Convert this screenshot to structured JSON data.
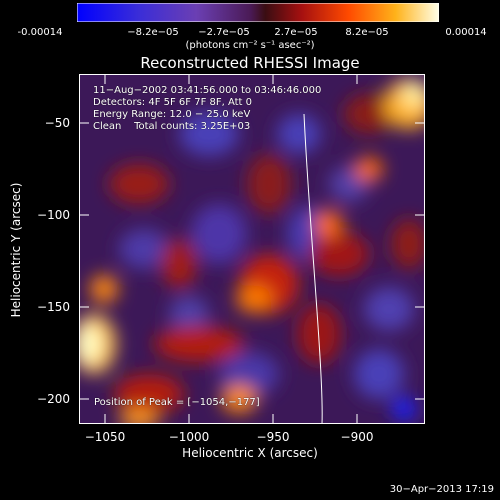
{
  "colorbar": {
    "tick_labels": [
      "-0.00014",
      "−8.2e−05",
      "−2.7e−05",
      "2.7e−05",
      "8.2e−05",
      "0.00014"
    ],
    "units_label": "(photons cm⁻² s⁻¹ asec⁻²)"
  },
  "plot": {
    "title": "Reconstructed RHESSI Image",
    "info_time": "11−Aug−2002 03:41:56.000 to 03:46:46.000",
    "info_detectors": "Detectors: 4F 5F 6F 7F 8F, Att 0",
    "info_energy": "Energy Range: 12.0 − 25.0 keV",
    "info_clean": "Clean    Total counts: 3.25E+03",
    "peak_text": "Position of Peak = [−1054,−177]",
    "x_label": "Heliocentric X (arcsec)",
    "y_label": "Heliocentric Y (arcsec)",
    "x_ticks": [
      "−1050",
      "−1000",
      "−950",
      "−900"
    ],
    "y_ticks": [
      "−50",
      "−100",
      "−150",
      "−200"
    ],
    "x_range": [
      -1070,
      -865
    ],
    "y_range": [
      -220,
      -25
    ]
  },
  "footer": {
    "timestamp": "30−Apr−2013 17:19"
  },
  "colors": {
    "background": "#000000",
    "text": "#ffffff"
  }
}
